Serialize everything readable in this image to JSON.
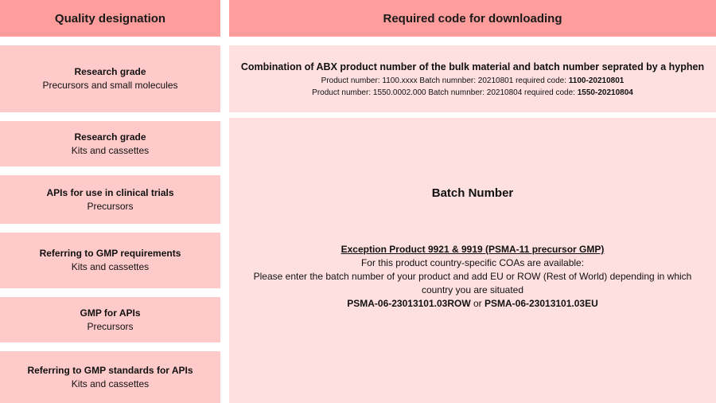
{
  "headers": {
    "quality": "Quality designation",
    "code": "Required code for downloading"
  },
  "rows": [
    {
      "title": "Research grade",
      "sub": "Precursors and small molecules"
    },
    {
      "title": "Research grade",
      "sub": "Kits and cassettes"
    },
    {
      "title": "APIs for use in clinical trials",
      "sub": "Precursors"
    },
    {
      "title": "Referring to GMP requirements",
      "sub": "Kits and cassettes"
    },
    {
      "title": "GMP for APIs",
      "sub": "Precursors"
    },
    {
      "title": "Referring to GMP standards for APIs",
      "sub": "Kits and cassettes"
    }
  ],
  "combo": {
    "title": "Combination of ABX product number of the bulk material and batch number seprated by a hyphen",
    "ex1": "Product number: 1100.xxxx Batch numnber: 20210801 required code: ",
    "ex1_code": "1100-20210801",
    "ex2": "Product number: 1550.0002.000 Batch numnber: 20210804 required code: ",
    "ex2_code": "1550-20210804"
  },
  "batch": {
    "title": "Batch Number",
    "exception_title": "Exception Product 9921 & 9919 (PSMA-11 precursor GMP)",
    "line1": "For this product country-specific COAs are available:",
    "line2": "Please enter the batch number of your product and add EU or ROW (Rest of World) depending in which country you are situated",
    "code_row": "PSMA-06-23013101.03ROW",
    "or": " or ",
    "code_eu": "PSMA-06-23013101.03EU"
  }
}
